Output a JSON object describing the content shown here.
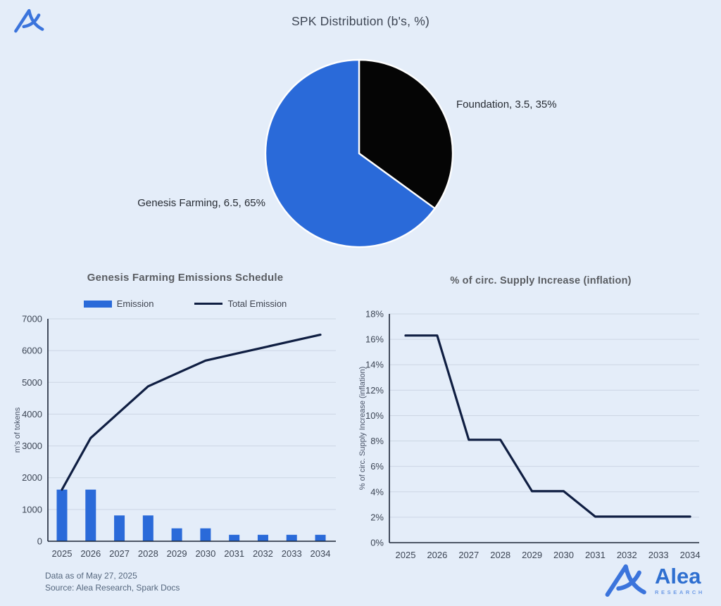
{
  "colors": {
    "background": "#e4edf9",
    "accent_blue": "#2a6ad9",
    "navy_line": "#0f1e42",
    "black_slice": "#050505",
    "grid": "#ccd6e4",
    "axis": "#1b2436",
    "logo_blue": "#3b74dc"
  },
  "brand": {
    "name": "Alea",
    "research_label": "RESEARCH"
  },
  "footer": {
    "data_as_of": "Data as of May 27, 2025",
    "source": "Source: Alea Research, Spark Docs"
  },
  "chart_data": [
    {
      "id": "spk-distribution",
      "type": "pie",
      "title": "SPK Distribution (b's, %)",
      "start_angle_deg": 0,
      "clockwise": true,
      "labels": [
        "Foundation, 3.5, 35%",
        "Genesis Farming, 6.5, 65%"
      ],
      "slices": [
        {
          "name": "Foundation",
          "value_b": 3.5,
          "percent": 35,
          "color": "#050505"
        },
        {
          "name": "Genesis Farming",
          "value_b": 6.5,
          "percent": 65,
          "color": "#2a6ad9"
        }
      ]
    },
    {
      "id": "genesis-farming-emissions",
      "type": "bar",
      "title": "Genesis Farming Emissions Schedule",
      "ylabel": "m's of tokens",
      "ylim": [
        0,
        7000
      ],
      "ytick_step": 1000,
      "ytick_suffix": "",
      "categories": [
        "2025",
        "2026",
        "2027",
        "2028",
        "2029",
        "2030",
        "2031",
        "2032",
        "2033",
        "2034"
      ],
      "series": [
        {
          "name": "Emission",
          "type": "bar",
          "color": "#2a6ad9",
          "values": [
            1625,
            1625,
            812.5,
            812.5,
            406.25,
            406.25,
            203.125,
            203.125,
            203.125,
            203.125
          ]
        },
        {
          "name": "Total Emission",
          "type": "line",
          "color": "#0f1e42",
          "values": [
            1625,
            3250,
            4062.5,
            4875,
            5281.25,
            5687.5,
            5890.6,
            6093.75,
            6296.9,
            6500
          ]
        }
      ],
      "legend_position": "top",
      "grid": true
    },
    {
      "id": "supply-inflation",
      "type": "line",
      "title": "% of circ. Supply Increase (inflation)",
      "ylabel": "% of circ. Supply Increase (inflation)",
      "ylim": [
        0,
        18
      ],
      "ytick_step": 2,
      "ytick_suffix": "%",
      "categories": [
        "2025",
        "2026",
        "2027",
        "2028",
        "2029",
        "2030",
        "2031",
        "2032",
        "2033",
        "2034"
      ],
      "series": [
        {
          "name": "% of circ. Supply Increase (inflation)",
          "type": "line",
          "color": "#0f1e42",
          "values": [
            16.3,
            16.3,
            8.1,
            8.1,
            4.05,
            4.05,
            2.05,
            2.05,
            2.05,
            2.05
          ]
        }
      ],
      "legend_position": "none",
      "grid": true
    }
  ]
}
